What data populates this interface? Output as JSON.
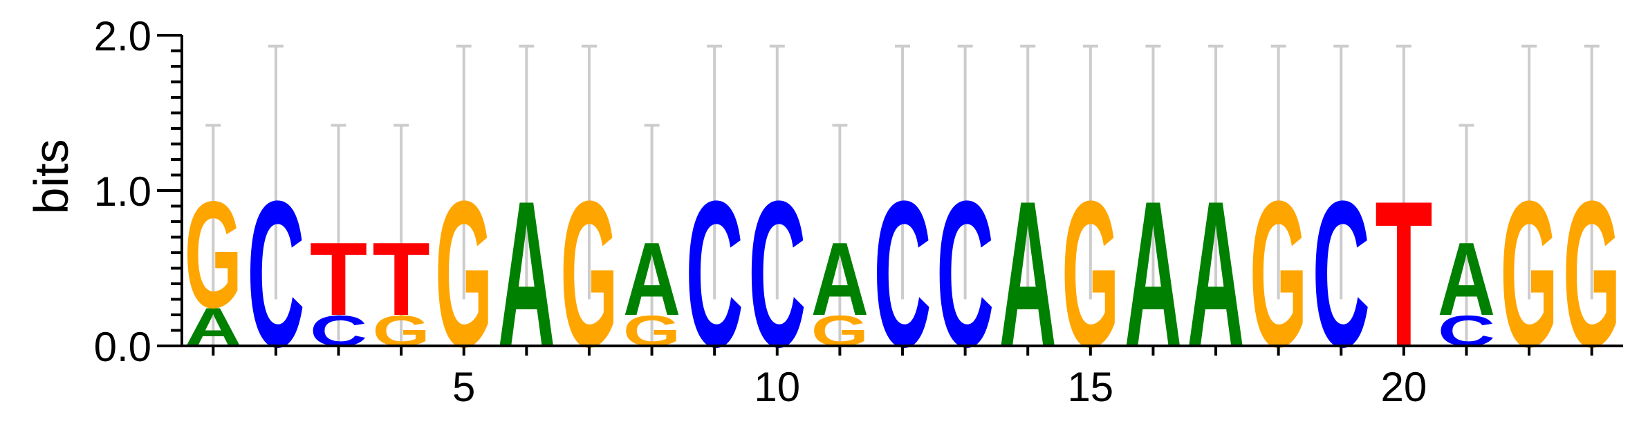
{
  "chart_data": {
    "type": "sequence-logo",
    "ylabel": "bits",
    "ylim": [
      0,
      2.0
    ],
    "y_ticks": [
      "0.0",
      "1.0",
      "2.0"
    ],
    "x_tick_labels": [
      "5",
      "10",
      "15",
      "20"
    ],
    "x_tick_positions": [
      5,
      10,
      15,
      20
    ],
    "error_bar_high": [
      1.42,
      1.93,
      1.42,
      1.42,
      1.93,
      1.93,
      1.93,
      1.42,
      1.93,
      1.93,
      1.42,
      1.93,
      1.93,
      1.93,
      1.93,
      1.93,
      1.93,
      1.93,
      1.93,
      1.93,
      1.42,
      1.93,
      1.93
    ],
    "error_bar_low": [
      0.0,
      0.3,
      0.0,
      0.0,
      0.3,
      0.3,
      0.3,
      0.0,
      0.3,
      0.3,
      0.0,
      0.3,
      0.3,
      0.3,
      0.3,
      0.3,
      0.3,
      0.3,
      0.3,
      0.3,
      0.0,
      0.3,
      0.3
    ],
    "colors": {
      "A": "#008000",
      "C": "#0000FF",
      "G": "#FFA500",
      "T": "#FF0000",
      "errorbar": "#cccccc"
    },
    "positions": [
      [
        {
          "letter": "A",
          "height": 0.25
        },
        {
          "letter": "G",
          "height": 0.7
        }
      ],
      [
        {
          "letter": "C",
          "height": 0.96
        }
      ],
      [
        {
          "letter": "C",
          "height": 0.2
        },
        {
          "letter": "T",
          "height": 0.48
        }
      ],
      [
        {
          "letter": "G",
          "height": 0.2
        },
        {
          "letter": "T",
          "height": 0.48
        }
      ],
      [
        {
          "letter": "G",
          "height": 0.96
        }
      ],
      [
        {
          "letter": "A",
          "height": 0.96
        }
      ],
      [
        {
          "letter": "G",
          "height": 0.96
        }
      ],
      [
        {
          "letter": "G",
          "height": 0.2
        },
        {
          "letter": "A",
          "height": 0.48
        }
      ],
      [
        {
          "letter": "C",
          "height": 0.96
        }
      ],
      [
        {
          "letter": "C",
          "height": 0.96
        }
      ],
      [
        {
          "letter": "G",
          "height": 0.2
        },
        {
          "letter": "A",
          "height": 0.48
        }
      ],
      [
        {
          "letter": "C",
          "height": 0.96
        }
      ],
      [
        {
          "letter": "C",
          "height": 0.96
        }
      ],
      [
        {
          "letter": "A",
          "height": 0.96
        }
      ],
      [
        {
          "letter": "G",
          "height": 0.96
        }
      ],
      [
        {
          "letter": "A",
          "height": 0.96
        }
      ],
      [
        {
          "letter": "A",
          "height": 0.96
        }
      ],
      [
        {
          "letter": "G",
          "height": 0.96
        }
      ],
      [
        {
          "letter": "C",
          "height": 0.96
        }
      ],
      [
        {
          "letter": "T",
          "height": 0.96
        }
      ],
      [
        {
          "letter": "C",
          "height": 0.2
        },
        {
          "letter": "A",
          "height": 0.48
        }
      ],
      [
        {
          "letter": "G",
          "height": 0.96
        }
      ],
      [
        {
          "letter": "G",
          "height": 0.96
        }
      ]
    ]
  }
}
